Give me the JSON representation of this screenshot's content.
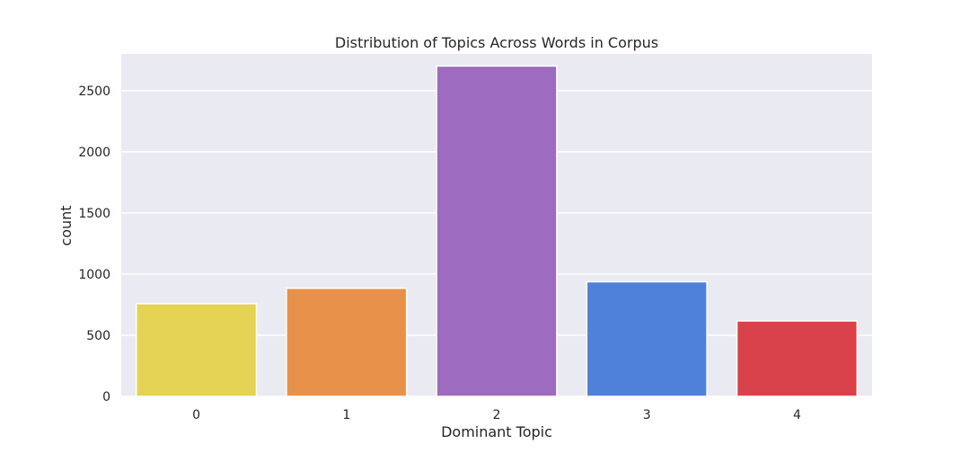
{
  "chart_data": {
    "type": "bar",
    "title": "Distribution of Topics Across Words in Corpus",
    "xlabel": "Dominant Topic",
    "ylabel": "count",
    "categories": [
      "0",
      "1",
      "2",
      "3",
      "4"
    ],
    "values": [
      758,
      884,
      2701,
      937,
      617
    ],
    "colors": [
      "#e4d354",
      "#e8914b",
      "#9d6bbf",
      "#4f81d9",
      "#d9424a"
    ],
    "ylim": [
      0,
      2800
    ],
    "yticks": [
      0,
      500,
      1000,
      1500,
      2000,
      2500
    ],
    "grid": true,
    "legend": "none",
    "background": "#eaeaf2"
  }
}
